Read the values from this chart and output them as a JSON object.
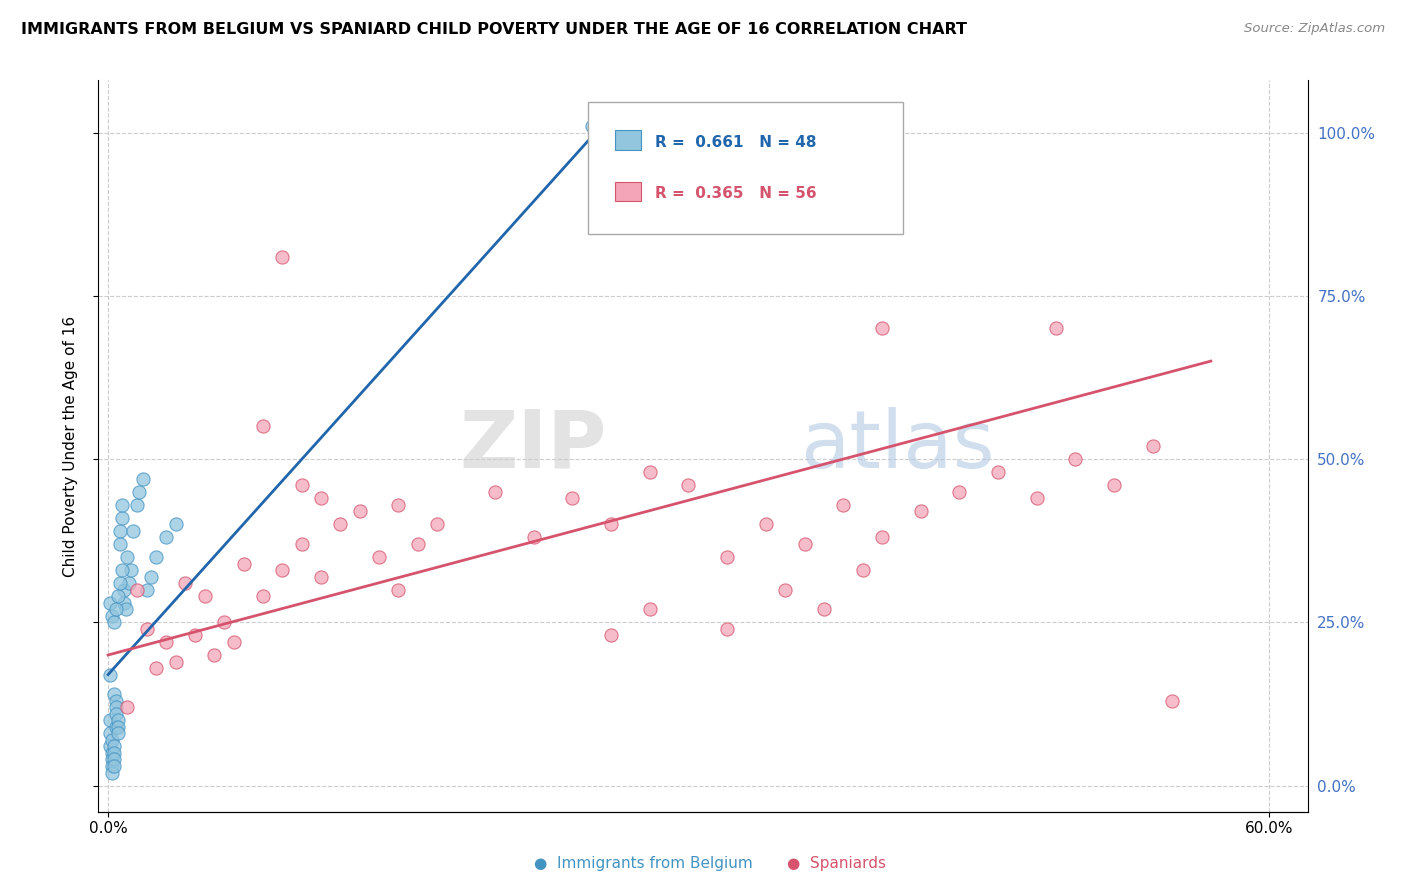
{
  "title": "IMMIGRANTS FROM BELGIUM VS SPANIARD CHILD POVERTY UNDER THE AGE OF 16 CORRELATION CHART",
  "source": "Source: ZipAtlas.com",
  "ylabel": "Child Poverty Under the Age of 16",
  "color_blue": "#92c5de",
  "color_pink": "#f4a6b8",
  "color_blue_dark": "#2166ac",
  "color_pink_dark": "#d6536d",
  "color_blue_edge": "#4393c3",
  "color_pink_edge": "#d6536d",
  "blue_x": [
    0.001,
    0.001,
    0.001,
    0.001,
    0.002,
    0.002,
    0.002,
    0.002,
    0.002,
    0.003,
    0.003,
    0.003,
    0.003,
    0.003,
    0.004,
    0.004,
    0.004,
    0.004,
    0.005,
    0.005,
    0.005,
    0.006,
    0.006,
    0.007,
    0.007,
    0.008,
    0.008,
    0.009,
    0.01,
    0.011,
    0.012,
    0.013,
    0.015,
    0.016,
    0.018,
    0.02,
    0.022,
    0.025,
    0.03,
    0.035,
    0.001,
    0.002,
    0.003,
    0.004,
    0.005,
    0.006,
    0.007,
    0.25
  ],
  "blue_y": [
    0.17,
    0.1,
    0.08,
    0.06,
    0.05,
    0.04,
    0.03,
    0.02,
    0.07,
    0.06,
    0.05,
    0.04,
    0.03,
    0.14,
    0.13,
    0.12,
    0.11,
    0.09,
    0.1,
    0.09,
    0.08,
    0.39,
    0.37,
    0.41,
    0.43,
    0.3,
    0.28,
    0.27,
    0.35,
    0.31,
    0.33,
    0.39,
    0.43,
    0.45,
    0.47,
    0.3,
    0.32,
    0.35,
    0.38,
    0.4,
    0.28,
    0.26,
    0.25,
    0.27,
    0.29,
    0.31,
    0.33,
    1.01
  ],
  "pink_x": [
    0.01,
    0.015,
    0.02,
    0.025,
    0.03,
    0.035,
    0.04,
    0.045,
    0.05,
    0.055,
    0.06,
    0.065,
    0.07,
    0.08,
    0.09,
    0.1,
    0.11,
    0.12,
    0.13,
    0.14,
    0.15,
    0.16,
    0.17,
    0.08,
    0.09,
    0.1,
    0.11,
    0.15,
    0.2,
    0.22,
    0.24,
    0.26,
    0.28,
    0.3,
    0.32,
    0.34,
    0.36,
    0.38,
    0.4,
    0.42,
    0.44,
    0.46,
    0.48,
    0.5,
    0.52,
    0.54,
    0.35,
    0.37,
    0.39,
    0.32,
    0.28,
    0.26,
    0.49,
    0.4,
    0.55
  ],
  "pink_y": [
    0.12,
    0.3,
    0.24,
    0.18,
    0.22,
    0.19,
    0.31,
    0.23,
    0.29,
    0.2,
    0.25,
    0.22,
    0.34,
    0.29,
    0.33,
    0.37,
    0.32,
    0.4,
    0.42,
    0.35,
    0.43,
    0.37,
    0.4,
    0.55,
    0.81,
    0.46,
    0.44,
    0.3,
    0.45,
    0.38,
    0.44,
    0.4,
    0.48,
    0.46,
    0.35,
    0.4,
    0.37,
    0.43,
    0.38,
    0.42,
    0.45,
    0.48,
    0.44,
    0.5,
    0.46,
    0.52,
    0.3,
    0.27,
    0.33,
    0.24,
    0.27,
    0.23,
    0.7,
    0.7,
    0.13
  ],
  "blue_line_x": [
    0.0,
    0.255
  ],
  "blue_line_y": [
    0.17,
    1.01
  ],
  "pink_line_x": [
    0.0,
    0.57
  ],
  "pink_line_y": [
    0.2,
    0.65
  ],
  "xlim": [
    -0.005,
    0.62
  ],
  "ylim": [
    -0.04,
    1.08
  ],
  "ytick_vals": [
    0.0,
    0.25,
    0.5,
    0.75,
    1.0
  ],
  "ytick_labels": [
    "0.0%",
    "25.0%",
    "50.0%",
    "75.0%",
    "100.0%"
  ],
  "xtick_vals": [
    0.0,
    0.6
  ],
  "xtick_labels": [
    "0.0%",
    "60.0%"
  ]
}
